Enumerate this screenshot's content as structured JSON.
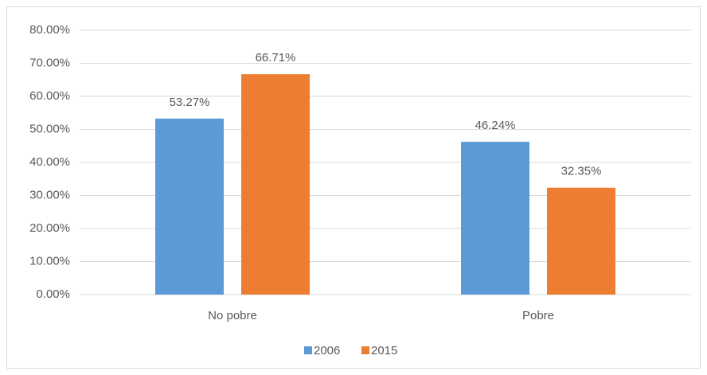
{
  "chart_data": {
    "type": "bar",
    "categories": [
      "No pobre",
      "Pobre"
    ],
    "series": [
      {
        "name": "2006",
        "color": "#5b9bd5",
        "values": [
          53.27,
          46.24
        ],
        "value_labels": [
          "53.27%",
          "46.24%"
        ]
      },
      {
        "name": "2015",
        "color": "#ed7d31",
        "values": [
          66.71,
          32.35
        ],
        "value_labels": [
          "66.71%",
          "32.35%"
        ]
      }
    ],
    "ylim": [
      0,
      80
    ],
    "yticks": [
      {
        "value": 0,
        "label": "0.00%"
      },
      {
        "value": 10,
        "label": "10.00%"
      },
      {
        "value": 20,
        "label": "20.00%"
      },
      {
        "value": 30,
        "label": "30.00%"
      },
      {
        "value": 40,
        "label": "40.00%"
      },
      {
        "value": 50,
        "label": "50.00%"
      },
      {
        "value": 60,
        "label": "60.00%"
      },
      {
        "value": 70,
        "label": "70.00%"
      },
      {
        "value": 80,
        "label": "80.00%"
      }
    ],
    "grid": true,
    "legend": "bottom"
  }
}
